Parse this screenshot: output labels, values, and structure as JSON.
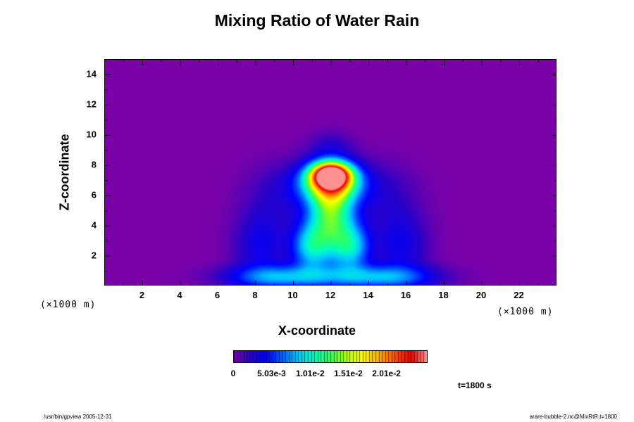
{
  "chart_data": {
    "type": "heatmap",
    "title": "Mixing Ratio of Water Rain",
    "xlabel": "X-coordinate",
    "ylabel": "Z-coordinate",
    "x_unit": "(×1000 m)",
    "y_unit": "(×1000 m)",
    "xlim": [
      0,
      24
    ],
    "ylim": [
      0,
      15
    ],
    "x_ticks": [
      "2",
      "4",
      "6",
      "8",
      "10",
      "12",
      "14",
      "16",
      "18",
      "20",
      "22"
    ],
    "y_ticks": [
      "2",
      "4",
      "6",
      "8",
      "10",
      "12",
      "14"
    ],
    "colorbar": {
      "min": 0,
      "max": 0.0255,
      "tick_labels": [
        "0",
        "5.03e-3",
        "1.01e-2",
        "1.51e-2",
        "2.01e-2"
      ],
      "tick_values": [
        0,
        0.00503,
        0.0101,
        0.0151,
        0.0201
      ],
      "colors": [
        "#7a00a8",
        "#2800c8",
        "#0000ff",
        "#0060ff",
        "#00c8ff",
        "#00ffc0",
        "#30ff60",
        "#b0ff00",
        "#ffff00",
        "#ffb000",
        "#ff5000",
        "#e80000",
        "#ff9090"
      ]
    },
    "field_components": [
      {
        "x": 12.0,
        "z": 7.4,
        "sx": 0.7,
        "sz": 0.55,
        "value": 0.02
      },
      {
        "x": 12.0,
        "z": 6.9,
        "sx": 1.1,
        "sz": 0.9,
        "value": 0.014
      },
      {
        "x": 12.0,
        "z": 4.8,
        "sx": 0.85,
        "sz": 1.9,
        "value": 0.0125
      },
      {
        "x": 10.9,
        "z": 2.6,
        "sx": 0.7,
        "sz": 1.1,
        "value": 0.008
      },
      {
        "x": 13.1,
        "z": 2.6,
        "sx": 0.7,
        "sz": 1.1,
        "value": 0.008
      },
      {
        "x": 9.4,
        "z": 0.6,
        "sx": 2.0,
        "sz": 0.55,
        "value": 0.0075
      },
      {
        "x": 14.6,
        "z": 0.6,
        "sx": 2.0,
        "sz": 0.55,
        "value": 0.0075
      },
      {
        "x": 8.3,
        "z": 2.8,
        "sx": 1.0,
        "sz": 1.6,
        "value": 0.0035
      },
      {
        "x": 15.7,
        "z": 2.8,
        "sx": 1.0,
        "sz": 1.6,
        "value": 0.0035
      },
      {
        "x": 9.4,
        "z": 6.2,
        "sx": 1.3,
        "sz": 1.4,
        "value": 0.002
      },
      {
        "x": 14.6,
        "z": 6.2,
        "sx": 1.3,
        "sz": 1.4,
        "value": 0.002
      },
      {
        "x": 12.0,
        "z": 9.4,
        "sx": 0.8,
        "sz": 0.6,
        "value": 0.0015
      }
    ]
  },
  "time_label": "t=1800 s",
  "footer": {
    "left": "/usr/bin/gpview 2005-12-31",
    "right": "arare-bubble-2.nc@MixRtR,t=1800"
  }
}
